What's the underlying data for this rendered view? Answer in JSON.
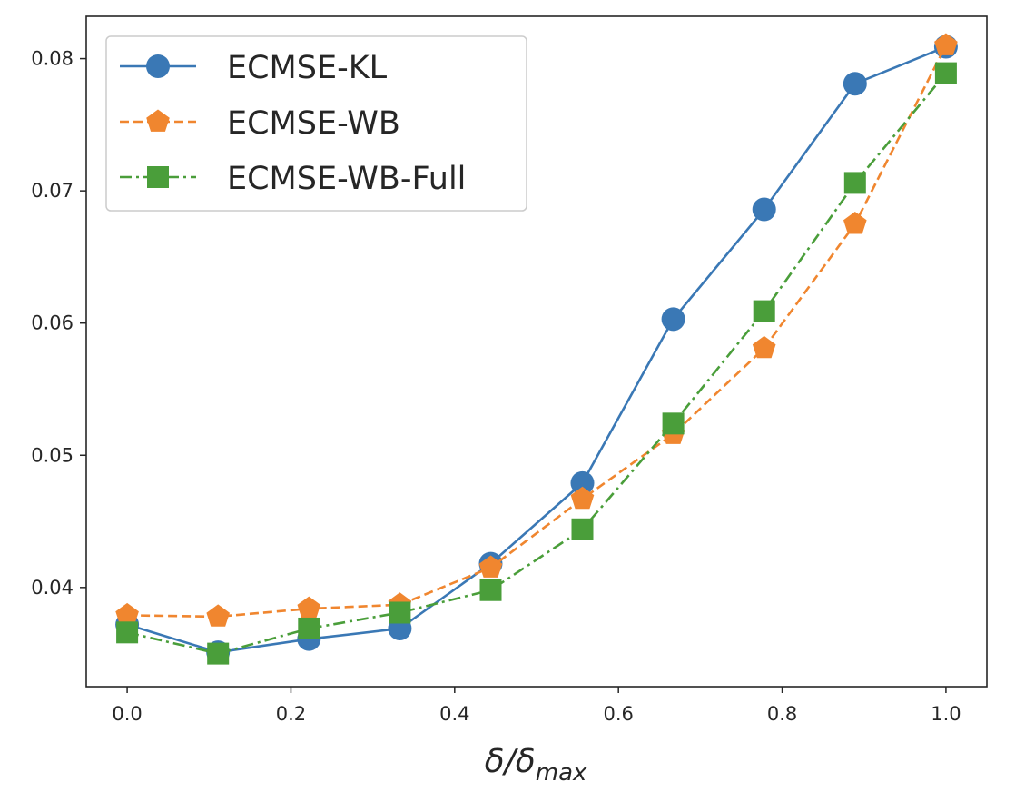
{
  "chart_data": {
    "type": "line",
    "title": "",
    "xlabel_main": "δ/δ",
    "xlabel_sub": "max",
    "ylabel": "",
    "x": [
      0.0,
      0.111,
      0.222,
      0.333,
      0.444,
      0.556,
      0.667,
      0.778,
      0.889,
      1.0
    ],
    "xlim": [
      -0.05,
      1.05
    ],
    "ylim": [
      0.0325,
      0.0832
    ],
    "xticks": [
      0.0,
      0.2,
      0.4,
      0.6,
      0.8,
      1.0
    ],
    "xtick_labels": [
      "0.0",
      "0.2",
      "0.4",
      "0.6",
      "0.8",
      "1.0"
    ],
    "yticks": [
      0.04,
      0.05,
      0.06,
      0.07,
      0.08
    ],
    "ytick_labels": [
      "0.04",
      "0.05",
      "0.06",
      "0.07",
      "0.08"
    ],
    "grid": false,
    "legend_position": "top-left",
    "series": [
      {
        "name": "ECMSE-KL",
        "color": "#3a78b5",
        "marker": "circle",
        "linestyle": "solid",
        "values": [
          0.0372,
          0.0351,
          0.0361,
          0.0369,
          0.0418,
          0.0479,
          0.0603,
          0.0686,
          0.0781,
          0.0809
        ]
      },
      {
        "name": "ECMSE-WB",
        "color": "#f0862f",
        "marker": "pentagon",
        "linestyle": "dashed",
        "values": [
          0.0379,
          0.0378,
          0.0384,
          0.0387,
          0.0415,
          0.0467,
          0.0516,
          0.0581,
          0.0675,
          0.081
        ]
      },
      {
        "name": "ECMSE-WB-Full",
        "color": "#4a9e3a",
        "marker": "square",
        "linestyle": "dashdot",
        "values": [
          0.0366,
          0.035,
          0.0369,
          0.0381,
          0.0398,
          0.0444,
          0.0524,
          0.0609,
          0.0706,
          0.0789
        ]
      }
    ]
  }
}
